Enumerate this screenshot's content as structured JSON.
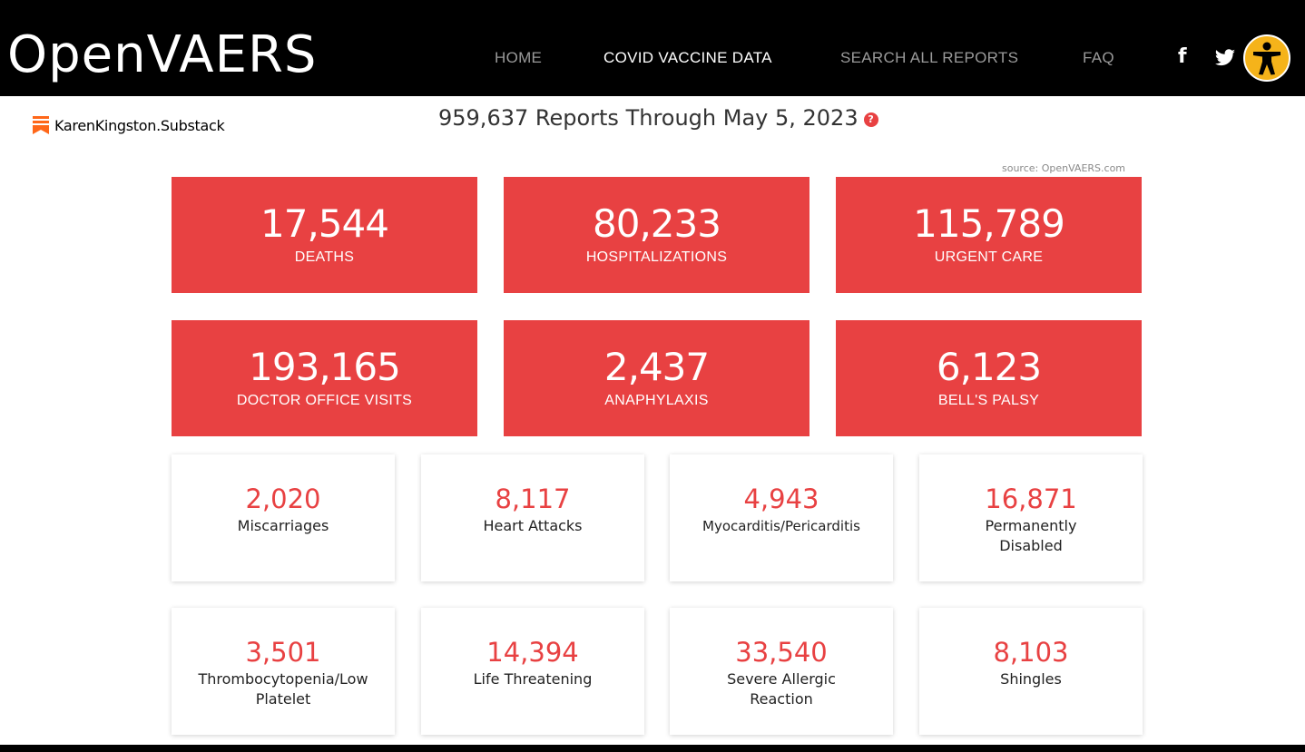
{
  "header": {
    "logo": "OpenVAERS",
    "nav": [
      {
        "label": "HOME",
        "active": false
      },
      {
        "label": "COVID VACCINE DATA",
        "active": true
      },
      {
        "label": "SEARCH ALL REPORTS",
        "active": false
      },
      {
        "label": "FAQ",
        "active": false
      }
    ],
    "icons": [
      "facebook-icon",
      "twitter-icon",
      "accessibility-icon"
    ]
  },
  "substack": {
    "label": "KarenKingston.Substack",
    "icon": "substack-icon"
  },
  "summary": {
    "headline": "959,637 Reports Through May 5, 2023",
    "help": "?",
    "source": "source: OpenVAERS.com"
  },
  "major_stats": [
    {
      "value": "17,544",
      "label": "DEATHS"
    },
    {
      "value": "80,233",
      "label": "HOSPITALIZATIONS"
    },
    {
      "value": "115,789",
      "label": "URGENT CARE"
    },
    {
      "value": "193,165",
      "label": "DOCTOR OFFICE VISITS"
    },
    {
      "value": "2,437",
      "label": "ANAPHYLAXIS"
    },
    {
      "value": "6,123",
      "label": "BELL'S PALSY"
    }
  ],
  "minor_stats": [
    {
      "value": "2,020",
      "label": "Miscarriages"
    },
    {
      "value": "8,117",
      "label": "Heart Attacks"
    },
    {
      "value": "4,943",
      "label": "Myocarditis/Pericarditis"
    },
    {
      "value": "16,871",
      "label": "Permanently Disabled"
    },
    {
      "value": "3,501",
      "label": "Thrombocytopenia/Low Platelet"
    },
    {
      "value": "14,394",
      "label": "Life Threatening"
    },
    {
      "value": "33,540",
      "label": "Severe Allergic Reaction"
    },
    {
      "value": "8,103",
      "label": "Shingles"
    }
  ],
  "colors": {
    "accent_red": "#e84142",
    "header_bg": "#000000",
    "substack_orange": "#ff6719"
  }
}
